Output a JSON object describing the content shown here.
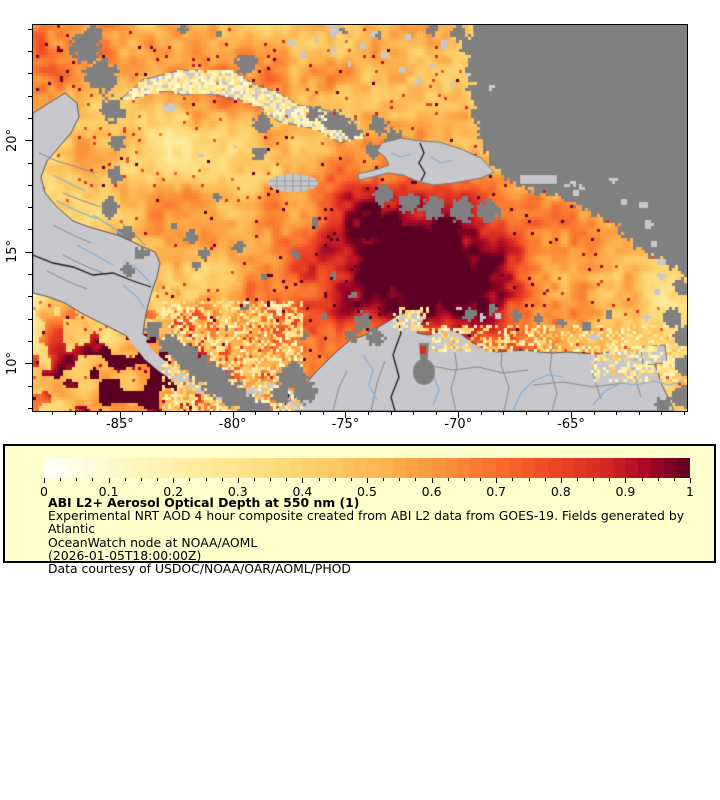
{
  "map": {
    "x_tick_labels": [
      "-85°",
      "-80°",
      "-75°",
      "-70°",
      "-65°"
    ],
    "y_tick_labels": [
      "20°",
      "15°",
      "10°"
    ],
    "land_color": "#C8C8CC",
    "no_data_color": "#808080",
    "river_color": "#85AFD9",
    "admin_border_color": "#8A8A8A",
    "country_border_color": "#1B1B1B"
  },
  "colorbar": {
    "tick_labels": [
      "0",
      "0.1",
      "0.2",
      "0.3",
      "0.4",
      "0.5",
      "0.6",
      "0.7",
      "0.8",
      "0.9",
      "1"
    ],
    "gradient_stops": [
      {
        "t": 0.0,
        "color": "#FFFFFF"
      },
      {
        "t": 0.06,
        "color": "#FFFCE0"
      },
      {
        "t": 0.14,
        "color": "#FFF6BE"
      },
      {
        "t": 0.24,
        "color": "#FEEC9E"
      },
      {
        "t": 0.34,
        "color": "#FEDF82"
      },
      {
        "t": 0.44,
        "color": "#FDCB65"
      },
      {
        "t": 0.54,
        "color": "#FDAE4C"
      },
      {
        "t": 0.62,
        "color": "#FC9039"
      },
      {
        "t": 0.7,
        "color": "#F9702E"
      },
      {
        "t": 0.78,
        "color": "#EF4A26"
      },
      {
        "t": 0.86,
        "color": "#D92B23"
      },
      {
        "t": 0.93,
        "color": "#AC0A25"
      },
      {
        "t": 1.0,
        "color": "#5C0023"
      }
    ]
  },
  "legend": {
    "background": "#FFFFCC",
    "title": "ABI L2+ Aerosol Optical Depth at 550 nm (1)",
    "description_line1": "Experimental NRT AOD 4 hour composite created from ABI L2 data from GOES-19. Fields generated by Atlantic",
    "description_line2": "OceanWatch node at NOAA/AOML",
    "timestamp": "(2026-01-05T18:00:00Z)",
    "courtesy": "Data courtesy of USDOC/NOAA/OAR/AOML/PHOD"
  }
}
